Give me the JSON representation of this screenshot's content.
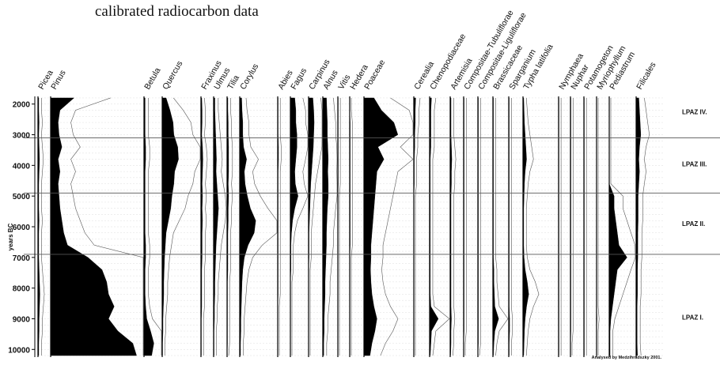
{
  "caption": "calibrated radiocarbon data",
  "chart_data": {
    "type": "area",
    "title": "",
    "ylabel": "years BC",
    "y_ticks": [
      2000,
      3000,
      4000,
      5000,
      6000,
      7000,
      8000,
      9000,
      10000
    ],
    "ylim": [
      10250,
      1750
    ],
    "y_reversed": true,
    "zones": [
      {
        "name": "LPAZ IV.",
        "from": 1750,
        "to": 3100
      },
      {
        "name": "LPAZ III.",
        "from": 3100,
        "to": 4900
      },
      {
        "name": "LPAZ II.",
        "from": 4900,
        "to": 6900
      },
      {
        "name": "LPAZ I.",
        "from": 6900,
        "to": 10250
      }
    ],
    "zone_boundaries": [
      3100,
      4900,
      6900
    ],
    "sample_depths": [
      1800,
      2200,
      2600,
      3000,
      3400,
      3800,
      4200,
      4600,
      5000,
      5400,
      5800,
      6200,
      6600,
      7000,
      7400,
      7800,
      8200,
      8600,
      9000,
      9400,
      9800,
      10200
    ],
    "exaggeration": 10,
    "series": [
      {
        "name": "Picea",
        "values": [
          2,
          2,
          3,
          2,
          3,
          4,
          3,
          2,
          2,
          2,
          3,
          2,
          2,
          2,
          3,
          4,
          5,
          4,
          3,
          3,
          2,
          2
        ]
      },
      {
        "name": "Pinus",
        "values": [
          25,
          10,
          8,
          9,
          12,
          8,
          10,
          8,
          9,
          10,
          12,
          14,
          18,
          40,
          55,
          60,
          62,
          68,
          62,
          72,
          88,
          92
        ]
      },
      {
        "name": "Betula",
        "values": [
          2,
          2,
          2,
          2,
          3,
          3,
          2,
          2,
          2,
          2,
          2,
          2,
          3,
          3,
          2,
          2,
          2,
          3,
          5,
          12,
          18,
          14
        ]
      },
      {
        "name": "Quercus",
        "values": [
          10,
          20,
          28,
          30,
          40,
          42,
          32,
          30,
          25,
          22,
          16,
          10,
          8,
          6,
          5,
          4,
          4,
          3,
          2,
          2,
          1,
          1
        ]
      },
      {
        "name": "Fraxinus",
        "values": [
          2,
          3,
          3,
          2,
          4,
          5,
          4,
          3,
          4,
          3,
          4,
          3,
          3,
          3,
          2,
          2,
          2,
          2,
          1,
          1,
          1,
          1
        ]
      },
      {
        "name": "Ulmus",
        "values": [
          3,
          3,
          4,
          5,
          6,
          7,
          6,
          8,
          10,
          12,
          10,
          8,
          6,
          5,
          4,
          3,
          3,
          2,
          2,
          1,
          1,
          1
        ]
      },
      {
        "name": "Tilia",
        "values": [
          2,
          2,
          3,
          3,
          4,
          4,
          4,
          3,
          4,
          3,
          3,
          2,
          2,
          2,
          2,
          1,
          1,
          1,
          1,
          1,
          1,
          0
        ]
      },
      {
        "name": "Corylus",
        "values": [
          5,
          6,
          8,
          8,
          10,
          18,
          12,
          14,
          20,
          28,
          42,
          38,
          22,
          12,
          8,
          6,
          5,
          4,
          3,
          3,
          2,
          2
        ]
      },
      {
        "name": "Abies",
        "values": [
          1,
          1,
          1,
          1,
          2,
          2,
          1,
          1,
          1,
          1,
          1,
          1,
          1,
          1,
          1,
          1,
          1,
          0,
          0,
          0,
          0,
          0
        ]
      },
      {
        "name": "Fagus",
        "values": [
          8,
          10,
          10,
          12,
          12,
          10,
          8,
          9,
          14,
          8,
          4,
          2,
          1,
          1,
          1,
          0,
          0,
          0,
          0,
          0,
          0,
          0
        ]
      },
      {
        "name": "Carpinus",
        "values": [
          10,
          12,
          13,
          12,
          11,
          9,
          7,
          5,
          4,
          3,
          2,
          1,
          1,
          1,
          0,
          0,
          0,
          0,
          0,
          0,
          0,
          0
        ]
      },
      {
        "name": "Alnus",
        "values": [
          8,
          9,
          10,
          10,
          11,
          12,
          11,
          12,
          12,
          10,
          9,
          8,
          8,
          7,
          6,
          5,
          5,
          4,
          3,
          3,
          2,
          2
        ]
      },
      {
        "name": "Vitis",
        "values": [
          1,
          1,
          1,
          1,
          1,
          1,
          1,
          1,
          0,
          0,
          0,
          0,
          0,
          0,
          0,
          0,
          0,
          0,
          0,
          0,
          0,
          0
        ]
      },
      {
        "name": "Hedera",
        "values": [
          0,
          0,
          1,
          1,
          1,
          1,
          1,
          1,
          1,
          1,
          1,
          1,
          1,
          0,
          0,
          0,
          0,
          0,
          0,
          0,
          0,
          0
        ]
      },
      {
        "name": "Poaceae",
        "values": [
          20,
          35,
          60,
          68,
          28,
          40,
          26,
          24,
          22,
          20,
          18,
          16,
          14,
          14,
          13,
          14,
          16,
          20,
          26,
          22,
          16,
          12
        ]
      },
      {
        "name": "Cerealia",
        "values": [
          4,
          3,
          3,
          2,
          2,
          1,
          1,
          1,
          0,
          0,
          0,
          0,
          0,
          0,
          0,
          0,
          0,
          0,
          0,
          0,
          0,
          0
        ]
      },
      {
        "name": "Chenopodiaceae",
        "values": [
          3,
          2,
          2,
          2,
          2,
          1,
          1,
          1,
          1,
          1,
          1,
          1,
          1,
          1,
          1,
          1,
          1,
          2,
          14,
          3,
          2,
          1
        ]
      },
      {
        "name": "Artemisia",
        "values": [
          2,
          2,
          2,
          2,
          3,
          4,
          3,
          3,
          2,
          2,
          2,
          2,
          2,
          2,
          2,
          2,
          2,
          2,
          3,
          2,
          2,
          1
        ]
      },
      {
        "name": "Compositae-Tubuliflorae",
        "values": [
          1,
          1,
          1,
          1,
          1,
          1,
          1,
          1,
          1,
          1,
          1,
          1,
          1,
          1,
          1,
          1,
          1,
          1,
          1,
          1,
          0,
          0
        ]
      },
      {
        "name": "Compositae-Liguliflorae",
        "values": [
          1,
          1,
          1,
          1,
          1,
          1,
          1,
          1,
          1,
          1,
          1,
          1,
          1,
          1,
          1,
          1,
          1,
          1,
          1,
          1,
          1,
          0
        ]
      },
      {
        "name": "Brassicaceae",
        "values": [
          1,
          1,
          1,
          1,
          1,
          1,
          1,
          1,
          1,
          1,
          1,
          1,
          1,
          1,
          2,
          2,
          3,
          4,
          12,
          4,
          2,
          1
        ]
      },
      {
        "name": "Sparganium",
        "values": [
          1,
          1,
          1,
          1,
          1,
          1,
          1,
          1,
          1,
          1,
          1,
          1,
          1,
          1,
          1,
          1,
          1,
          1,
          2,
          2,
          1,
          1
        ]
      },
      {
        "name": "Typha latifolia",
        "values": [
          2,
          3,
          4,
          6,
          8,
          10,
          6,
          4,
          3,
          2,
          2,
          2,
          2,
          3,
          6,
          12,
          16,
          10,
          6,
          4,
          3,
          2
        ]
      },
      {
        "name": "Nymphaea",
        "values": [
          1,
          1,
          1,
          1,
          1,
          1,
          1,
          1,
          1,
          1,
          1,
          1,
          1,
          1,
          1,
          1,
          1,
          1,
          1,
          1,
          1,
          1
        ]
      },
      {
        "name": "Nuphar",
        "values": [
          1,
          1,
          1,
          1,
          1,
          1,
          1,
          1,
          1,
          1,
          1,
          1,
          1,
          1,
          1,
          1,
          1,
          1,
          1,
          1,
          0,
          0
        ]
      },
      {
        "name": "Potamogeton",
        "values": [
          1,
          1,
          1,
          1,
          1,
          1,
          1,
          1,
          1,
          1,
          1,
          1,
          1,
          1,
          1,
          1,
          1,
          1,
          1,
          1,
          1,
          1
        ]
      },
      {
        "name": "Myriophyllum",
        "values": [
          0,
          0,
          0,
          0,
          0,
          0,
          0,
          0,
          0,
          0,
          0,
          0,
          0,
          0,
          0,
          0,
          0,
          0,
          1,
          0,
          0,
          0
        ]
      },
      {
        "name": "Pediastrum",
        "values": [
          0,
          0,
          0,
          0,
          0,
          0,
          0,
          0,
          6,
          6,
          8,
          10,
          12,
          22,
          10,
          8,
          6,
          4,
          2,
          1,
          1,
          1
        ]
      },
      {
        "name": "Filicales",
        "values": [
          8,
          10,
          12,
          14,
          10,
          8,
          10,
          8,
          6,
          6,
          6,
          5,
          5,
          5,
          4,
          4,
          4,
          3,
          3,
          3,
          3,
          4
        ]
      }
    ]
  },
  "credit": "Analysed by Medzihradszky 2001."
}
